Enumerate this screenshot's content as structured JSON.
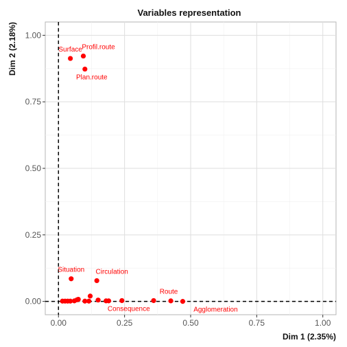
{
  "chart_data": {
    "type": "scatter",
    "title": "Variables representation",
    "xlabel": "Dim 1 (2.35%)",
    "ylabel": "Dim 2 (2.18%)",
    "xlim": [
      -0.05,
      1.05
    ],
    "ylim": [
      -0.05,
      1.05
    ],
    "x_ticks": [
      0.0,
      0.25,
      0.5,
      0.75,
      1.0
    ],
    "y_ticks": [
      0.0,
      0.25,
      0.5,
      0.75,
      1.0
    ],
    "x_tick_labels": [
      "0.00",
      "0.25",
      "0.50",
      "0.75",
      "1.00"
    ],
    "y_tick_labels": [
      "0.00",
      "0.25",
      "0.50",
      "0.75",
      "1.00"
    ],
    "grid": true,
    "reference_lines": {
      "x": 0,
      "y": 0,
      "style": "dashed"
    },
    "point_color": "#ff0000",
    "points": [
      {
        "x": 0.045,
        "y": 0.913,
        "label": "Surface",
        "label_pos": "above"
      },
      {
        "x": 0.094,
        "y": 0.922,
        "label": "Profil.route",
        "label_pos": "above-right"
      },
      {
        "x": 0.1,
        "y": 0.873,
        "label": "Plan.route",
        "label_pos": "below"
      },
      {
        "x": 0.048,
        "y": 0.085,
        "label": "Situation",
        "label_pos": "above"
      },
      {
        "x": 0.145,
        "y": 0.078,
        "label": "Circulation",
        "label_pos": "above-right"
      },
      {
        "x": 0.36,
        "y": 0.003,
        "label": "Route",
        "label_pos": "above-right"
      },
      {
        "x": 0.47,
        "y": 0.0,
        "label": "Agglomeration",
        "label_pos": "below-right"
      },
      {
        "x": 0.24,
        "y": 0.003,
        "label": "Consequence",
        "label_pos": "below"
      },
      {
        "x": 0.015,
        "y": 0.001,
        "label": ""
      },
      {
        "x": 0.025,
        "y": 0.001,
        "label": ""
      },
      {
        "x": 0.035,
        "y": 0.001,
        "label": ""
      },
      {
        "x": 0.045,
        "y": 0.001,
        "label": ""
      },
      {
        "x": 0.06,
        "y": 0.002,
        "label": ""
      },
      {
        "x": 0.07,
        "y": 0.006,
        "label": ""
      },
      {
        "x": 0.075,
        "y": 0.008,
        "label": ""
      },
      {
        "x": 0.1,
        "y": 0.001,
        "label": ""
      },
      {
        "x": 0.115,
        "y": 0.001,
        "label": ""
      },
      {
        "x": 0.12,
        "y": 0.02,
        "label": ""
      },
      {
        "x": 0.15,
        "y": 0.005,
        "label": ""
      },
      {
        "x": 0.18,
        "y": 0.002,
        "label": ""
      },
      {
        "x": 0.19,
        "y": 0.002,
        "label": ""
      },
      {
        "x": 0.425,
        "y": 0.002,
        "label": ""
      }
    ]
  }
}
